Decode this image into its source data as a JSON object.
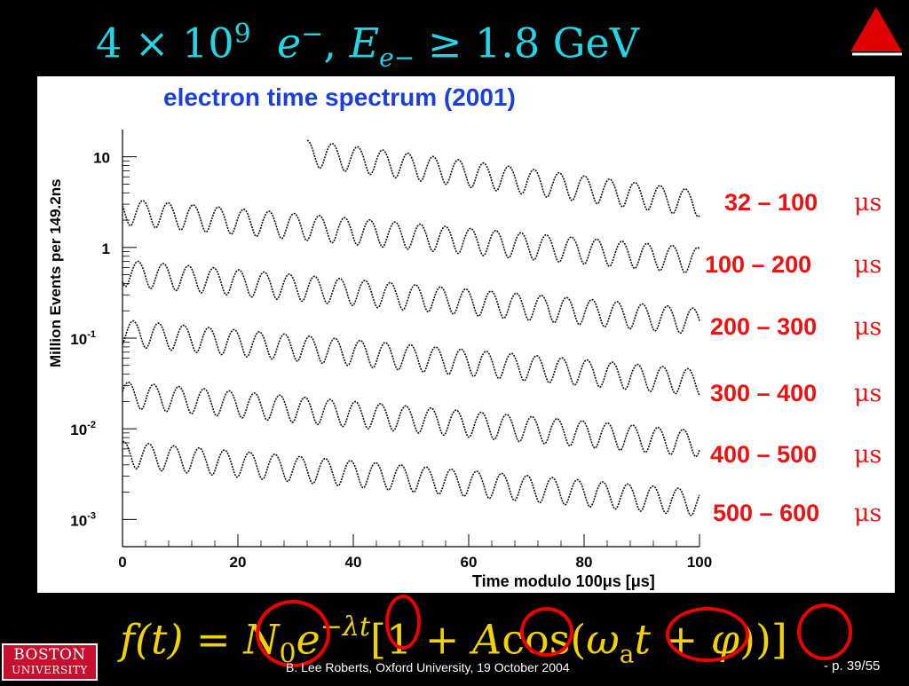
{
  "slide": {
    "title_prefix": "4 × 10",
    "title_exp": "9",
    "title_e": "e",
    "title_e_sup": "−",
    "title_E": "E",
    "title_E_sub": "e−",
    "title_rest": "≥ 1.8 GeV"
  },
  "chart_data": {
    "type": "line",
    "title": "electron time spectrum (2001)",
    "xlabel": "Time modulo 100μs [μs]",
    "ylabel": "Million Events per 149.2ns",
    "x_ticks": [
      "0",
      "20",
      "40",
      "60",
      "80",
      "100"
    ],
    "y_ticks": [
      {
        "base": "10",
        "exp": ""
      },
      {
        "base": "1",
        "exp": ""
      },
      {
        "base": "10",
        "exp": "-1"
      },
      {
        "base": "10",
        "exp": "-2"
      },
      {
        "base": "10",
        "exp": "-3"
      }
    ],
    "y_scale": "log",
    "xlim": [
      0,
      100
    ],
    "period_us": 4.37,
    "series": [
      {
        "name": "32 – 100",
        "unit": "μs",
        "x_start": 32,
        "x_end": 100,
        "level_start": 11.5,
        "level_end": 3.2
      },
      {
        "name": "100 – 200",
        "unit": "μs",
        "x_start": 0,
        "x_end": 100,
        "level_start": 2.6,
        "level_end": 0.75
      },
      {
        "name": "200 – 300",
        "unit": "μs",
        "x_start": 0,
        "x_end": 100,
        "level_start": 0.55,
        "level_end": 0.16
      },
      {
        "name": "300 – 400",
        "unit": "μs",
        "x_start": 0,
        "x_end": 100,
        "level_start": 0.12,
        "level_end": 0.034
      },
      {
        "name": "400 – 500",
        "unit": "μs",
        "x_start": 0,
        "x_end": 100,
        "level_start": 0.025,
        "level_end": 0.0072
      },
      {
        "name": "500 – 600",
        "unit": "μs",
        "x_start": 0,
        "x_end": 100,
        "level_start": 0.0055,
        "level_end": 0.0016
      }
    ]
  },
  "formula": {
    "lhs": "f(t) =",
    "N": "N",
    "N_sub": "0",
    "e": "e",
    "exp_minus": "−",
    "exp_lambda": "λ",
    "exp_t": "t",
    "bracket_open": "[1 +",
    "A": "A",
    "cos": "cos(",
    "omega": "ω",
    "omega_sub": "a",
    "t": "t",
    "plus": "+",
    "phi": "φ",
    "close": "))]"
  },
  "footer": {
    "logo_line1": "BOSTON",
    "logo_line2": "UNIVERSITY",
    "credit": "B. Lee Roberts, Oxford University, 19 October 2004",
    "page": "- p. 39/55"
  },
  "colors": {
    "title": "#22d6e6",
    "labels": "#ee1111",
    "formula": "#f2d200",
    "chart_title": "#1a3fe0",
    "logo": "#c8102e"
  }
}
